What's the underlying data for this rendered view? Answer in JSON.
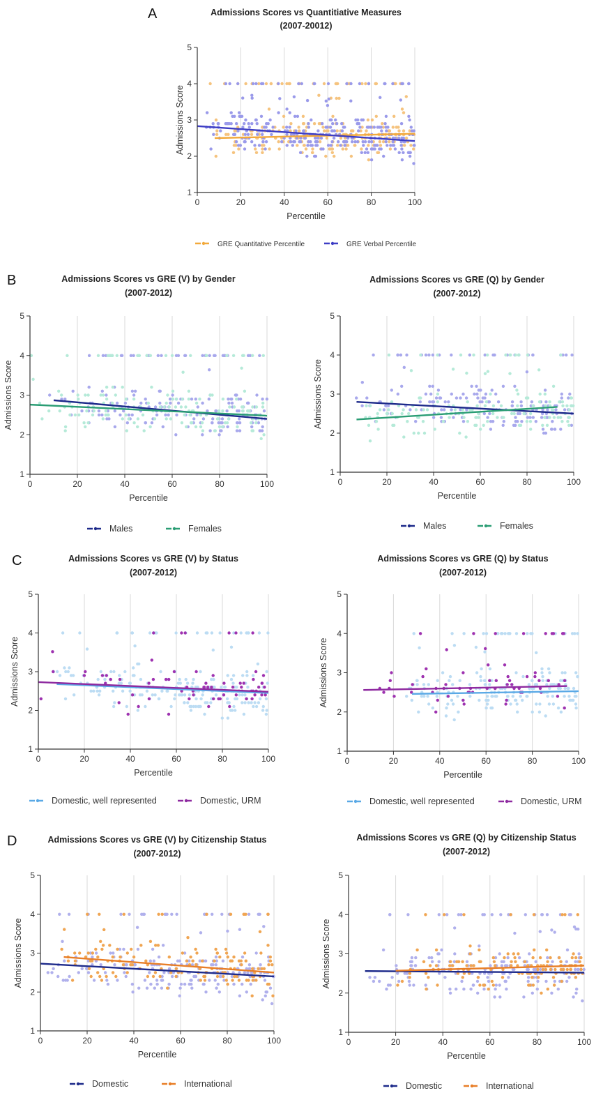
{
  "panel_letters": [
    "A",
    "B",
    "C",
    "D"
  ],
  "charts": [
    {
      "panel": "A",
      "title": [
        "Admissions Scores vs Quantitiative Measures",
        "(2007-20012)"
      ],
      "xlabel": "Percentile",
      "ylabel": "Admissions Score",
      "xlim": [
        0,
        100
      ],
      "ylim": [
        1,
        5
      ],
      "xticks": [
        0,
        20,
        40,
        60,
        80,
        100
      ],
      "yticks": [
        1,
        2,
        3,
        4,
        5
      ],
      "grid": "vertical",
      "legend_placement": "bottom",
      "series": [
        {
          "name": "GRE Quantitative Percentile",
          "color": "#f2a93b",
          "point_color": "#f5c37e",
          "trend": [
            [
              8,
              2.5
            ],
            [
              100,
              2.62
            ]
          ],
          "n": 230,
          "xrange": [
            5,
            100
          ],
          "seed": 11
        },
        {
          "name": "GRE Verbal Percentile",
          "color": "#3d3dc4",
          "point_color": "#9a9aea",
          "trend": [
            [
              0,
              2.83
            ],
            [
              100,
              2.42
            ]
          ],
          "n": 300,
          "xrange": [
            0,
            100
          ],
          "seed": 12
        }
      ]
    },
    {
      "panel": "B",
      "title": [
        "Admissions Scores vs GRE (V) by Gender",
        "(2007-2012)"
      ],
      "xlabel": "Percentile",
      "ylabel": "Admissions Score",
      "xlim": [
        0,
        100
      ],
      "ylim": [
        1,
        5
      ],
      "xticks": [
        0,
        20,
        40,
        60,
        80,
        100
      ],
      "yticks": [
        1,
        2,
        3,
        4,
        5
      ],
      "grid": "vertical",
      "legend_placement": "bottom",
      "series": [
        {
          "name": "Males",
          "color": "#1d2a8a",
          "point_color": "#a8a8ec",
          "trend": [
            [
              10,
              2.87
            ],
            [
              100,
              2.4
            ]
          ],
          "n": 190,
          "xrange": [
            8,
            100
          ],
          "seed": 21
        },
        {
          "name": "Females",
          "color": "#2a9d74",
          "point_color": "#b5ead8",
          "trend": [
            [
              0,
              2.76
            ],
            [
              100,
              2.48
            ]
          ],
          "n": 170,
          "xrange": [
            0,
            100
          ],
          "seed": 22
        }
      ]
    },
    {
      "panel": "",
      "title": [
        "Admissions Scores vs GRE (Q) by Gender",
        "(2007-2012)"
      ],
      "xlabel": "Percentile",
      "ylabel": "Admissions Score",
      "xlim": [
        0,
        100
      ],
      "ylim": [
        1,
        5
      ],
      "xticks": [
        0,
        20,
        40,
        60,
        80,
        100
      ],
      "yticks": [
        1,
        2,
        3,
        4,
        5
      ],
      "grid": "vertical",
      "legend_placement": "bottom",
      "series": [
        {
          "name": "Males",
          "color": "#1d2a8a",
          "point_color": "#a8a8ec",
          "trend": [
            [
              7,
              2.8
            ],
            [
              100,
              2.5
            ]
          ],
          "n": 180,
          "xrange": [
            6,
            100
          ],
          "seed": 31
        },
        {
          "name": "Females",
          "color": "#2a9d74",
          "point_color": "#b5ead8",
          "trend": [
            [
              7,
              2.35
            ],
            [
              93,
              2.67
            ]
          ],
          "n": 150,
          "xrange": [
            7,
            100
          ],
          "seed": 32
        }
      ]
    },
    {
      "panel": "C",
      "title": [
        "Admissions Scores vs GRE (V) by Status",
        "(2007-2012)"
      ],
      "xlabel": "Percentile",
      "ylabel": "Admissions Score",
      "xlim": [
        0,
        100
      ],
      "ylim": [
        1,
        5
      ],
      "xticks": [
        0,
        20,
        40,
        60,
        80,
        100
      ],
      "yticks": [
        1,
        2,
        3,
        4,
        5
      ],
      "grid": "vertical",
      "legend_placement": "bottom",
      "series": [
        {
          "name": "Domestic, well represented",
          "color": "#5aa9e6",
          "point_color": "#bcdcf3",
          "trend": [
            [
              8,
              2.68
            ],
            [
              100,
              2.45
            ]
          ],
          "n": 220,
          "xrange": [
            5,
            100
          ],
          "seed": 41
        },
        {
          "name": "Domestic, URM",
          "color": "#8e2aa0",
          "point_color": "#9e32b0",
          "trend": [
            [
              0,
              2.73
            ],
            [
              100,
              2.48
            ]
          ],
          "n": 70,
          "xrange": [
            0,
            100
          ],
          "seed": 42
        }
      ]
    },
    {
      "panel": "",
      "title": [
        "Admissions Scores vs GRE (Q) by Status",
        "(2007-2012)"
      ],
      "xlabel": "Percentile",
      "ylabel": "Admissions Score",
      "xlim": [
        0,
        100
      ],
      "ylim": [
        1,
        5
      ],
      "xticks": [
        0,
        20,
        40,
        60,
        80,
        100
      ],
      "yticks": [
        1,
        2,
        3,
        4,
        5
      ],
      "grid": "vertical",
      "legend_placement": "bottom",
      "series": [
        {
          "name": "Domestic, well represented",
          "color": "#5aa9e6",
          "point_color": "#bcdcf3",
          "trend": [
            [
              28,
              2.46
            ],
            [
              100,
              2.53
            ]
          ],
          "n": 200,
          "xrange": [
            25,
            100
          ],
          "seed": 51
        },
        {
          "name": "Domestic, URM",
          "color": "#8e2aa0",
          "point_color": "#9e32b0",
          "trend": [
            [
              7,
              2.56
            ],
            [
              95,
              2.66
            ]
          ],
          "n": 65,
          "xrange": [
            7,
            95
          ],
          "seed": 52
        }
      ]
    },
    {
      "panel": "D",
      "title": [
        "Admissions Scores vs GRE (V) by Citizenship Status",
        "(2007-2012)"
      ],
      "xlabel": "Percentile",
      "ylabel": "Admissions Score",
      "xlim": [
        0,
        100
      ],
      "ylim": [
        1,
        5
      ],
      "xticks": [
        0,
        20,
        40,
        60,
        80,
        100
      ],
      "yticks": [
        1,
        2,
        3,
        4,
        5
      ],
      "grid": "vertical",
      "legend_placement": "bottom",
      "series": [
        {
          "name": "Domestic",
          "color": "#1d2a8a",
          "point_color": "#b0b0ec",
          "trend": [
            [
              0,
              2.73
            ],
            [
              100,
              2.4
            ]
          ],
          "n": 230,
          "xrange": [
            0,
            100
          ],
          "seed": 61
        },
        {
          "name": "International",
          "color": "#e87e27",
          "point_color": "#f0a552",
          "trend": [
            [
              10,
              2.9
            ],
            [
              100,
              2.5
            ]
          ],
          "n": 150,
          "xrange": [
            8,
            100
          ],
          "seed": 62
        }
      ]
    },
    {
      "panel": "",
      "title": [
        "Admissions Scores vs GRE (Q) by Citizenship Status",
        "(2007-2012)"
      ],
      "xlabel": "Percentile",
      "ylabel": "Admissions Score",
      "xlim": [
        0,
        100
      ],
      "ylim": [
        1,
        5
      ],
      "xticks": [
        0,
        20,
        40,
        60,
        80,
        100
      ],
      "yticks": [
        1,
        2,
        3,
        4,
        5
      ],
      "grid": "vertical",
      "legend_placement": "bottom",
      "series": [
        {
          "name": "Domestic",
          "color": "#1d2a8a",
          "point_color": "#b0b0ec",
          "trend": [
            [
              7,
              2.56
            ],
            [
              100,
              2.52
            ]
          ],
          "n": 220,
          "xrange": [
            6,
            100
          ],
          "seed": 71
        },
        {
          "name": "International",
          "color": "#e87e27",
          "point_color": "#f0a552",
          "trend": [
            [
              20,
              2.57
            ],
            [
              100,
              2.7
            ]
          ],
          "n": 130,
          "xrange": [
            20,
            100
          ],
          "seed": 72
        }
      ]
    }
  ]
}
